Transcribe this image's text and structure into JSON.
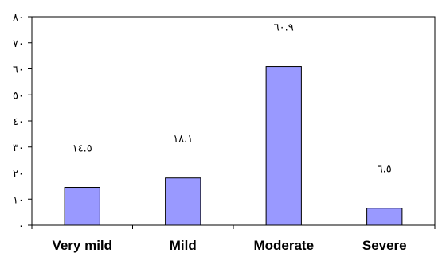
{
  "chart_data": {
    "type": "bar",
    "categories": [
      "Very mild",
      "Mild",
      "Moderate",
      "Severe"
    ],
    "values": [
      14.5,
      18.1,
      60.9,
      6.5
    ],
    "data_labels": [
      "١٤.٥",
      "١٨.١",
      "٦٠.٩",
      "٦.٥"
    ],
    "ylim": [
      0,
      80
    ],
    "y_ticks": [
      0,
      10,
      20,
      30,
      40,
      50,
      60,
      70,
      80
    ],
    "y_tick_labels": [
      "٠",
      "١٠",
      "٢٠",
      "٣٠",
      "٤٠",
      "٥٠",
      "٦٠",
      "٧٠",
      "٨٠"
    ],
    "grid": false,
    "bar_color": "#9999ff",
    "bar_edge_color": "#000000"
  }
}
